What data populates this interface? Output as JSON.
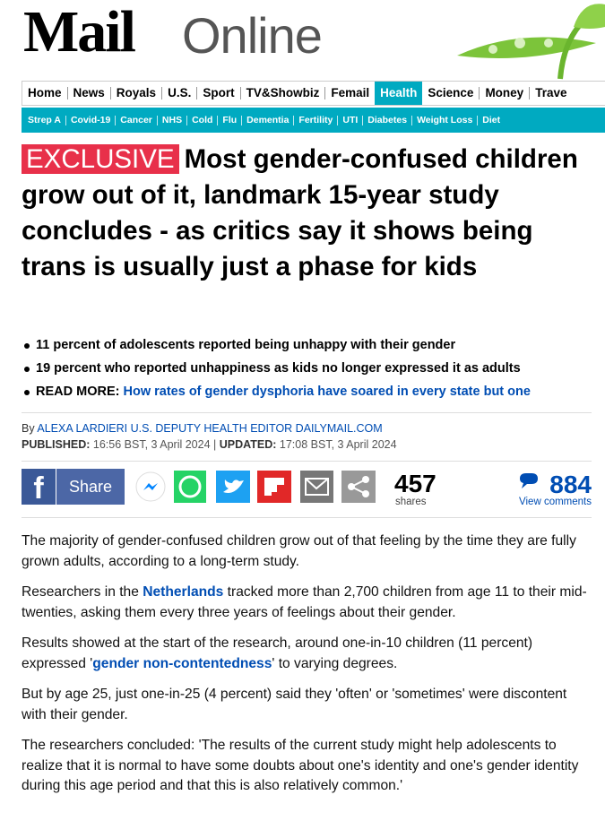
{
  "logo": {
    "mail": "Mail",
    "online": "Online"
  },
  "nav": {
    "items": [
      "Home",
      "News",
      "Royals",
      "U.S.",
      "Sport",
      "TV&Showbiz",
      "Femail",
      "Health",
      "Science",
      "Money",
      "Trave"
    ],
    "active": 7
  },
  "subnav": {
    "items": [
      "Strep A",
      "Covid-19",
      "Cancer",
      "NHS",
      "Cold",
      "Flu",
      "Dementia",
      "Fertility",
      "UTI",
      "Diabetes",
      "Weight Loss",
      "Diet"
    ]
  },
  "headline": {
    "label": "EXCLUSIVE",
    "text": "Most gender-confused children grow out of it, landmark 15-year study concludes - as critics say it shows being trans is usually just a phase for kids"
  },
  "bullets": [
    {
      "text": "11 percent of adolescents reported being unhappy with their gender"
    },
    {
      "text": "19 percent who reported unhappiness as kids no longer expressed it as adults"
    },
    {
      "text": "READ MORE:",
      "link": "How rates of gender dysphoria have soared in every state but one"
    }
  ],
  "byline": {
    "by": "By",
    "author": "ALEXA LARDIERI U.S. DEPUTY HEALTH EDITOR DAILYMAIL.COM"
  },
  "dates": {
    "published_label": "PUBLISHED:",
    "published": "16:56 BST, 3 April 2024",
    "separator": "|",
    "updated_label": "UPDATED:",
    "updated": "17:08 BST, 3 April 2024"
  },
  "share": {
    "button": "Share",
    "count": "457",
    "count_label": "shares",
    "comments": "884",
    "comments_label": "View comments"
  },
  "paragraphs": [
    [
      {
        "text": "The majority of gender-confused children grow out of that feeling by the time they are fully grown adults, according to a long-term study."
      }
    ],
    [
      {
        "text": "Researchers in the "
      },
      {
        "text": "Netherlands",
        "link": true
      },
      {
        "text": " tracked more than 2,700 children from age 11 to their mid-twenties, asking them every three years of feelings about their gender."
      }
    ],
    [
      {
        "text": "Results showed at the start of the research, around one-in-10 children (11 percent) expressed '"
      },
      {
        "text": "gender non-contentedness",
        "link": true
      },
      {
        "text": "' to varying degrees."
      }
    ],
    [
      {
        "text": "But by age 25, just one-in-25 (4 percent) said they 'often' or 'sometimes' were discontent with their gender."
      }
    ],
    [
      {
        "text": "The researchers concluded: 'The results of the current study might help adolescents to realize that it is normal to have some doubts about one's identity and one's gender identity during this age period and that this is also relatively common.'"
      }
    ]
  ]
}
